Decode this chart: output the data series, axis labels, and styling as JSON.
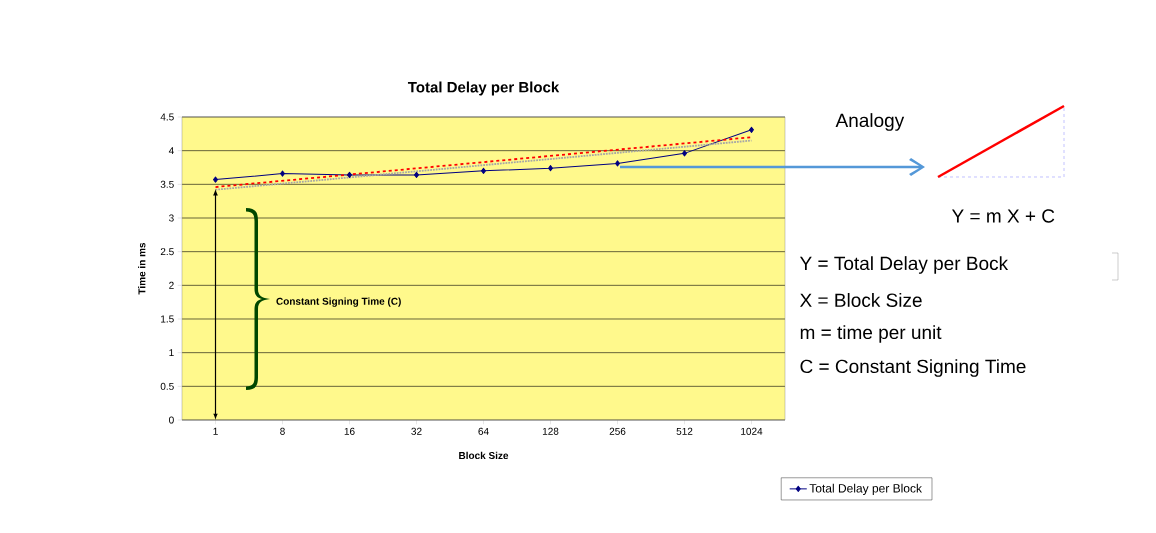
{
  "chart_data": {
    "type": "line",
    "title": "Total Delay per Block",
    "xlabel": "Block Size",
    "ylabel": "Time in ms",
    "categories": [
      "1",
      "8",
      "16",
      "32",
      "64",
      "128",
      "256",
      "512",
      "1024"
    ],
    "series": [
      {
        "name": "Total Delay per Block",
        "color": "#000080",
        "values": [
          3.57,
          3.66,
          3.64,
          3.64,
          3.7,
          3.74,
          3.81,
          3.96,
          4.31
        ],
        "marker": "diamond",
        "line_style": "solid"
      },
      {
        "color": "#ff0000",
        "values": [
          3.46,
          null,
          null,
          null,
          null,
          null,
          null,
          null,
          4.2
        ],
        "marker": "none",
        "line_style": "dashed"
      },
      {
        "color": "#a6a6a6",
        "values": [
          3.42,
          null,
          null,
          null,
          null,
          null,
          null,
          null,
          4.15
        ],
        "marker": "none",
        "line_style": "dotted"
      }
    ],
    "ylim": [
      0,
      4.5
    ],
    "yticks": [
      0,
      0.5,
      1,
      1.5,
      2,
      2.5,
      3,
      3.5,
      4,
      4.5
    ],
    "grid": "y",
    "legend": "bottom right",
    "annotations": [
      "Constant Signing Time (C)",
      "Analogy",
      "Y = m X + C",
      "Y = Total Delay per Bock",
      "X = Block Size",
      "m = time per unit",
      "C = Constant Signing Time"
    ]
  }
}
